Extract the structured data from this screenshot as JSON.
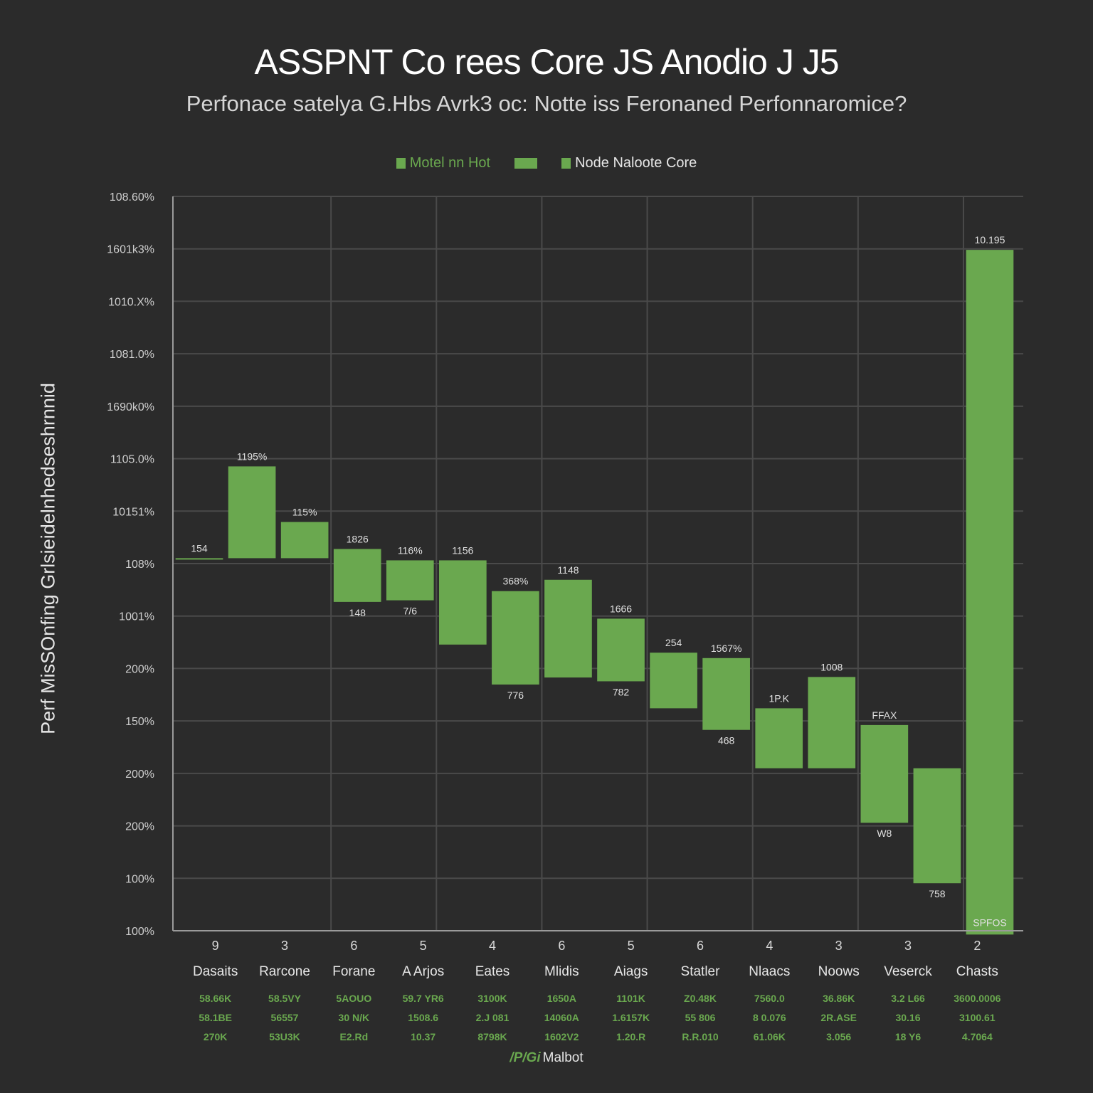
{
  "chart_data": {
    "type": "bar",
    "title": "ASSPNT Co rees Core JS Anodio J J5",
    "subtitle": "Perfonace satelya G.Hbs Avrk3 oc: Notte iss Feronaned Perfonnaromice?",
    "ylabel": "Perf MisSOnfing Grlsieidelnhedseshrnnid",
    "legend": [
      "Motel nn Hot",
      "Node Naloote Core"
    ],
    "y_tick_labels": [
      "108.60%",
      "1601k3%",
      "1010.X%",
      "1081.0%",
      "1690k0%",
      "1105.0%",
      "10151%",
      "108%",
      "1001%",
      "200%",
      "150%",
      "200%",
      "200%",
      "100%",
      "100%"
    ],
    "ylim": [
      0,
      1360
    ],
    "grid": true,
    "categories": [
      "",
      "",
      "",
      "",
      "",
      "",
      "",
      "",
      "",
      "",
      "",
      "",
      "",
      "",
      "",
      ""
    ],
    "bars": [
      {
        "start": 688,
        "end": 690,
        "top_label": "154"
      },
      {
        "start": 690,
        "end": 860,
        "top_label": "1195%"
      },
      {
        "start": 690,
        "end": 757,
        "top_label": "115%"
      },
      {
        "start": 609,
        "end": 707,
        "top_label": "1826",
        "bottom_label": "148"
      },
      {
        "start": 612,
        "end": 686,
        "top_label": "116%",
        "bottom_label": "7/6"
      },
      {
        "start": 530,
        "end": 686,
        "top_label": "1156"
      },
      {
        "start": 456,
        "end": 629,
        "top_label": "368%",
        "bottom_label": "776"
      },
      {
        "start": 469,
        "end": 650,
        "top_label": "1148"
      },
      {
        "start": 462,
        "end": 578,
        "top_label": "1666",
        "bottom_label": "782"
      },
      {
        "start": 412,
        "end": 515,
        "top_label": "254"
      },
      {
        "start": 372,
        "end": 505,
        "top_label": "1567%",
        "bottom_label": "468"
      },
      {
        "start": 301,
        "end": 412,
        "top_label": "1P.K"
      },
      {
        "start": 301,
        "end": 470,
        "top_label": "1008"
      },
      {
        "start": 200,
        "end": 381,
        "top_label": "FFAX",
        "bottom_label": "W8"
      },
      {
        "start": 88,
        "end": 301,
        "top_label": "",
        "bottom_label": "758"
      },
      {
        "start": -7,
        "end": 1261,
        "top_label": "10.195",
        "bottom_label": "SPFOS"
      }
    ],
    "x_numbers": [
      "9",
      "3",
      "6",
      "5",
      "4",
      "6",
      "5",
      "6",
      "4",
      "3",
      "3",
      "2"
    ],
    "x_categories": [
      "Dasaits",
      "Rarcone",
      "Forane",
      "A Arjos",
      "Eates",
      "Mlidis",
      "Aiags",
      "Statler",
      "Nlaacs",
      "Noows",
      "Veserck",
      "Chasts"
    ],
    "x_sub_rows": [
      [
        "58.66K",
        "58.1BE",
        "270K"
      ],
      [
        "58.5VY",
        "56557",
        "53U3K"
      ],
      [
        "5AOUO",
        "30 N/K",
        "E2.Rd"
      ],
      [
        "59.7 YR6",
        "1508.6",
        "10.37"
      ],
      [
        "3100K",
        "2.J 081",
        "8798K"
      ],
      [
        "1650A",
        "14060A",
        "1602V2"
      ],
      [
        "1101K",
        "1.6157K",
        "1.20.R"
      ],
      [
        "Z0.48K",
        "55 806",
        "R.R.010"
      ],
      [
        "7560.0",
        "8 0.076",
        "61.06K"
      ],
      [
        "36.86K",
        "2R.ASE",
        "3.056"
      ],
      [
        "3.2 L66",
        "30.16",
        "18 Y6"
      ],
      [
        "3600.0006",
        "3100.61",
        "4.7064"
      ]
    ],
    "colors": {
      "bar": "#6aa84f",
      "background": "#2b2b2b",
      "grid": "#4a4a4a",
      "axis": "#9a9a9a"
    }
  },
  "footer": {
    "mark": "/P/Gi",
    "text": "Malbot"
  }
}
